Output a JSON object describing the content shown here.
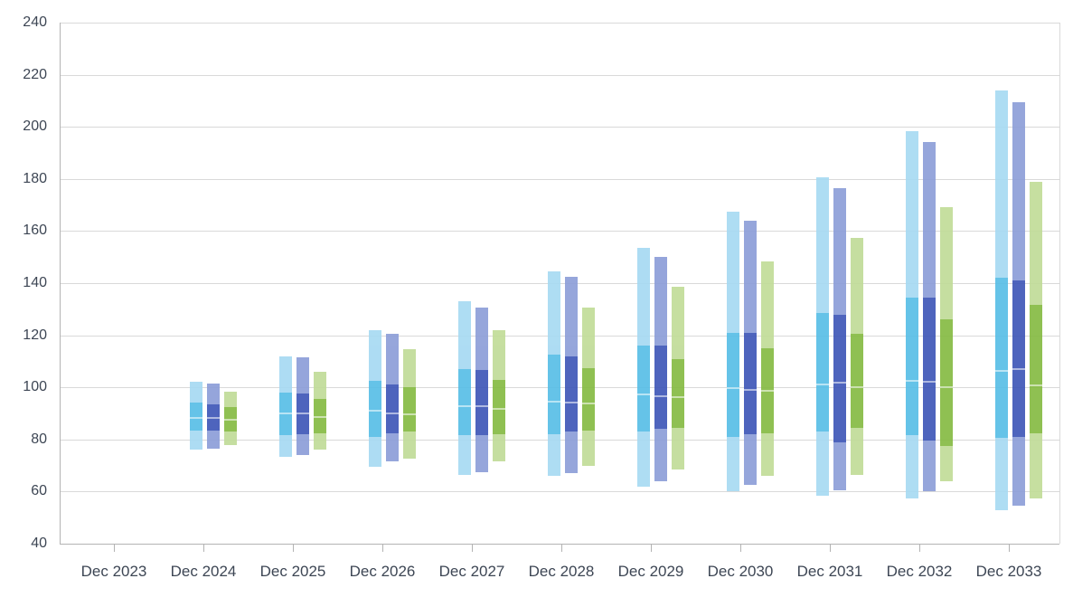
{
  "chart_data": {
    "type": "bar",
    "subtype": "floating-range-percentile-bars",
    "title": "",
    "xlabel": "",
    "ylabel": "",
    "ylim": [
      40,
      240
    ],
    "ytick_step": 20,
    "ytick_labels": [
      "40",
      "60",
      "80",
      "100",
      "120",
      "140",
      "160",
      "180",
      "200",
      "220",
      "240"
    ],
    "grid": true,
    "legend_position": "none",
    "categories": [
      "Dec 2023",
      "Dec 2024",
      "Dec 2025",
      "Dec 2026",
      "Dec 2027",
      "Dec 2028",
      "Dec 2029",
      "Dec 2030",
      "Dec 2031",
      "Dec 2032",
      "Dec 2033"
    ],
    "band_structure": {
      "outer": "5th-95th percentile (light)",
      "core": "25th-75th percentile (dark)",
      "median_marker": "light line"
    },
    "series": [
      {
        "name": "cyan",
        "color_light": "#a7daf2",
        "color_core": "#58bee7",
        "values": [
          null,
          {
            "lo": 76.0,
            "p25": 83.5,
            "p50": 88.5,
            "p75": 94.0,
            "hi": 102.0
          },
          {
            "lo": 73.5,
            "p25": 81.5,
            "p50": 90.5,
            "p75": 98.0,
            "hi": 112.0
          },
          {
            "lo": 69.5,
            "p25": 81.0,
            "p50": 91.5,
            "p75": 102.5,
            "hi": 122.0
          },
          {
            "lo": 66.5,
            "p25": 81.5,
            "p50": 93.0,
            "p75": 107.0,
            "hi": 133.0
          },
          {
            "lo": 66.0,
            "p25": 82.0,
            "p50": 95.0,
            "p75": 112.5,
            "hi": 144.5
          },
          {
            "lo": 62.0,
            "p25": 83.0,
            "p50": 97.5,
            "p75": 116.0,
            "hi": 153.5
          },
          {
            "lo": 60.0,
            "p25": 81.0,
            "p50": 100.0,
            "p75": 121.0,
            "hi": 167.5
          },
          {
            "lo": 58.5,
            "p25": 83.0,
            "p50": 101.5,
            "p75": 128.5,
            "hi": 180.5
          },
          {
            "lo": 57.5,
            "p25": 81.5,
            "p50": 103.0,
            "p75": 134.5,
            "hi": 198.5
          },
          {
            "lo": 53.0,
            "p25": 80.5,
            "p50": 106.5,
            "p75": 142.0,
            "hi": 214.0
          }
        ]
      },
      {
        "name": "indigo",
        "color_light": "#8d9ed8",
        "color_core": "#3f57b8",
        "values": [
          null,
          {
            "lo": 76.5,
            "p25": 83.5,
            "p50": 88.5,
            "p75": 93.5,
            "hi": 101.5
          },
          {
            "lo": 74.0,
            "p25": 82.0,
            "p50": 90.5,
            "p75": 97.5,
            "hi": 111.5
          },
          {
            "lo": 71.5,
            "p25": 82.5,
            "p50": 90.5,
            "p75": 101.0,
            "hi": 120.5
          },
          {
            "lo": 67.5,
            "p25": 81.5,
            "p50": 93.0,
            "p75": 106.5,
            "hi": 130.5
          },
          {
            "lo": 67.0,
            "p25": 83.0,
            "p50": 94.5,
            "p75": 112.0,
            "hi": 142.5
          },
          {
            "lo": 64.0,
            "p25": 84.0,
            "p50": 97.0,
            "p75": 116.0,
            "hi": 150.0
          },
          {
            "lo": 62.5,
            "p25": 82.0,
            "p50": 99.5,
            "p75": 121.0,
            "hi": 164.0
          },
          {
            "lo": 60.5,
            "p25": 79.0,
            "p50": 102.0,
            "p75": 128.0,
            "hi": 176.5
          },
          {
            "lo": 60.0,
            "p25": 79.5,
            "p50": 102.5,
            "p75": 134.5,
            "hi": 194.0
          },
          {
            "lo": 54.5,
            "p25": 81.0,
            "p50": 107.5,
            "p75": 141.0,
            "hi": 209.5
          }
        ]
      },
      {
        "name": "green",
        "color_light": "#c1dc98",
        "color_core": "#86bb44",
        "values": [
          null,
          {
            "lo": 78.0,
            "p25": 83.0,
            "p50": 88.0,
            "p75": 92.5,
            "hi": 98.5
          },
          {
            "lo": 76.0,
            "p25": 82.5,
            "p50": 89.0,
            "p75": 95.5,
            "hi": 106.0
          },
          {
            "lo": 72.5,
            "p25": 83.0,
            "p50": 90.0,
            "p75": 100.0,
            "hi": 114.5
          },
          {
            "lo": 71.5,
            "p25": 82.0,
            "p50": 92.0,
            "p75": 103.0,
            "hi": 122.0
          },
          {
            "lo": 70.0,
            "p25": 83.5,
            "p50": 94.0,
            "p75": 107.5,
            "hi": 130.5
          },
          {
            "lo": 68.5,
            "p25": 84.5,
            "p50": 96.5,
            "p75": 111.0,
            "hi": 138.5
          },
          {
            "lo": 66.0,
            "p25": 82.5,
            "p50": 99.0,
            "p75": 115.0,
            "hi": 148.5
          },
          {
            "lo": 66.5,
            "p25": 84.5,
            "p50": 100.5,
            "p75": 120.5,
            "hi": 157.5
          },
          {
            "lo": 64.0,
            "p25": 77.5,
            "p50": 100.5,
            "p75": 126.0,
            "hi": 169.0
          },
          {
            "lo": 57.5,
            "p25": 82.5,
            "p50": 101.0,
            "p75": 131.5,
            "hi": 179.0
          }
        ]
      }
    ],
    "style": {
      "grid_color": "#d9d9d9",
      "axis_line_color": "#b3b3b3",
      "text_color": "#3d4654",
      "background": "#ffffff"
    }
  }
}
